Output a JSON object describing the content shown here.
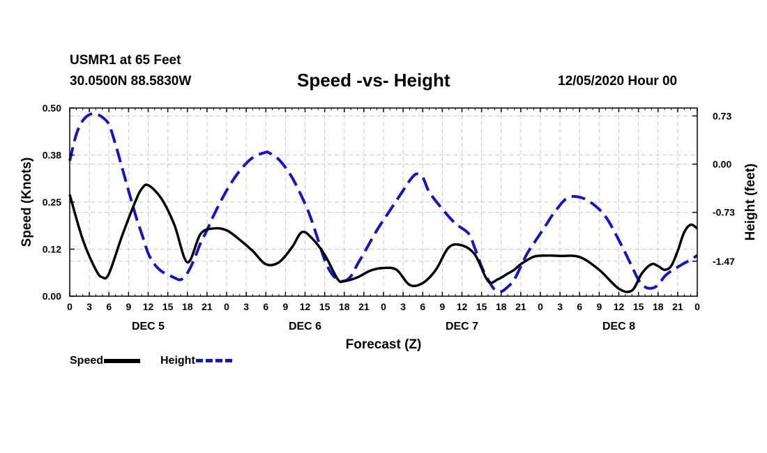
{
  "header": {
    "station": "USMR1 at 65 Feet",
    "coords": "30.0500N 88.5830W",
    "title": "Speed -vs- Height",
    "issued": "12/05/2020 Hour 00"
  },
  "colors": {
    "speed": "#000000",
    "height": "#1515c8",
    "grid": "#c8c8c8"
  },
  "chart_data": {
    "type": "line",
    "title": "Speed -vs- Height",
    "xlabel": "Forecast (Z)",
    "ylabel": "Speed (Knots)",
    "y2label": "Height (feet)",
    "xlim": [
      0,
      96
    ],
    "ylim": [
      0,
      0.5
    ],
    "y2lim": [
      -2.0,
      0.85
    ],
    "x_ticks": [
      0,
      3,
      6,
      9,
      12,
      15,
      18,
      21,
      24,
      27,
      30,
      33,
      36,
      39,
      42,
      45,
      48,
      51,
      54,
      57,
      60,
      63,
      66,
      69,
      72,
      75,
      78,
      81,
      84,
      87,
      90,
      93,
      96
    ],
    "x_tick_labels": [
      "0",
      "3",
      "6",
      "9",
      "12",
      "15",
      "18",
      "21",
      "0",
      "3",
      "6",
      "9",
      "12",
      "15",
      "18",
      "21",
      "0",
      "3",
      "6",
      "9",
      "12",
      "15",
      "18",
      "21",
      "0",
      "3",
      "6",
      "9",
      "12",
      "15",
      "18",
      "21",
      "0"
    ],
    "y_ticks": [
      0,
      0.125,
      0.25,
      0.375,
      0.5
    ],
    "y_tick_labels": [
      "0.00",
      "0.12",
      "0.25",
      "0.38",
      "0.50"
    ],
    "y2_ticks": [
      0.73,
      0.0,
      -0.73,
      -1.47
    ],
    "y2_tick_labels": [
      "0.73",
      "0.00",
      "-0.73",
      "-1.47"
    ],
    "day_labels": [
      {
        "hour": 12,
        "label": "DEC 5"
      },
      {
        "hour": 36,
        "label": "DEC 6"
      },
      {
        "hour": 60,
        "label": "DEC 7"
      },
      {
        "hour": 84,
        "label": "DEC 8"
      }
    ],
    "legend": "bottom-left",
    "series": [
      {
        "name": "Speed",
        "axis": "left",
        "style": "solid",
        "x": [
          0,
          2,
          4,
          5,
          6,
          8,
          10,
          11,
          12,
          14,
          16,
          18,
          20,
          22,
          24,
          26,
          28,
          30,
          32,
          34,
          35.5,
          37,
          39,
          41,
          42,
          44,
          46,
          48,
          50,
          52,
          54,
          56,
          58,
          60,
          62,
          64,
          65.5,
          67,
          68,
          69,
          71,
          73,
          75,
          78,
          81,
          84,
          86,
          87.5,
          89,
          90,
          91,
          92,
          93,
          94,
          95,
          96
        ],
        "values": [
          0.27,
          0.15,
          0.07,
          0.05,
          0.06,
          0.16,
          0.25,
          0.285,
          0.295,
          0.26,
          0.19,
          0.09,
          0.165,
          0.18,
          0.175,
          0.15,
          0.12,
          0.085,
          0.09,
          0.13,
          0.17,
          0.155,
          0.11,
          0.045,
          0.04,
          0.05,
          0.068,
          0.075,
          0.07,
          0.03,
          0.035,
          0.07,
          0.13,
          0.135,
          0.11,
          0.04,
          0.045,
          0.06,
          0.07,
          0.085,
          0.105,
          0.108,
          0.107,
          0.104,
          0.07,
          0.02,
          0.015,
          0.06,
          0.085,
          0.08,
          0.07,
          0.08,
          0.12,
          0.17,
          0.19,
          0.18
        ]
      },
      {
        "name": "Height",
        "axis": "right",
        "style": "dashed",
        "x": [
          0,
          1,
          2,
          3,
          4,
          5,
          6,
          7,
          8,
          10,
          11,
          12,
          13,
          14,
          15,
          16,
          17,
          18,
          19,
          20,
          21,
          22,
          24,
          26,
          28,
          30,
          30.5,
          32,
          34,
          36,
          37,
          38,
          39,
          40,
          41,
          42,
          43,
          44,
          45,
          47,
          49,
          51,
          52,
          53,
          54,
          55,
          57,
          59,
          61,
          62,
          63,
          64,
          65,
          66,
          67,
          68,
          69,
          70,
          71,
          72,
          73,
          74,
          76,
          78,
          80,
          82,
          84,
          86,
          87,
          88,
          89,
          90,
          91,
          92,
          93,
          94,
          95,
          96
        ],
        "values": [
          0.05,
          0.45,
          0.66,
          0.75,
          0.76,
          0.71,
          0.6,
          0.3,
          -0.05,
          -0.75,
          -1.05,
          -1.35,
          -1.52,
          -1.62,
          -1.67,
          -1.72,
          -1.75,
          -1.65,
          -1.45,
          -1.2,
          -1.0,
          -0.78,
          -0.4,
          -0.1,
          0.1,
          0.18,
          0.17,
          0.07,
          -0.2,
          -0.6,
          -0.85,
          -1.15,
          -1.45,
          -1.65,
          -1.75,
          -1.77,
          -1.7,
          -1.52,
          -1.35,
          -1.0,
          -0.7,
          -0.4,
          -0.25,
          -0.15,
          -0.2,
          -0.42,
          -0.68,
          -0.9,
          -1.05,
          -1.28,
          -1.55,
          -1.75,
          -1.9,
          -1.93,
          -1.86,
          -1.75,
          -1.55,
          -1.35,
          -1.2,
          -1.05,
          -0.9,
          -0.75,
          -0.52,
          -0.5,
          -0.6,
          -0.8,
          -1.15,
          -1.55,
          -1.75,
          -1.86,
          -1.88,
          -1.83,
          -1.7,
          -1.62,
          -1.56,
          -1.5,
          -1.45,
          -1.38
        ]
      }
    ]
  }
}
